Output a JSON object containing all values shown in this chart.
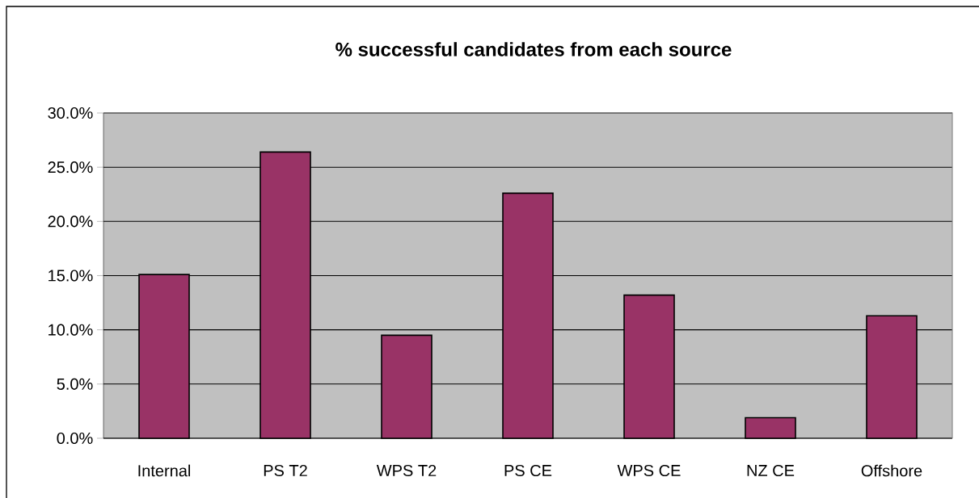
{
  "chart_data": {
    "type": "bar",
    "title": "% successful candidates from each source",
    "categories": [
      "Internal",
      "PS T2",
      "WPS T2",
      "PS CE",
      "WPS CE",
      "NZ CE",
      "Offshore"
    ],
    "values": [
      15.1,
      26.4,
      9.5,
      22.6,
      13.2,
      1.9,
      11.3
    ],
    "color": "#993366",
    "ylim": [
      0,
      30
    ],
    "yticks": [
      {
        "value": 0,
        "label": "0.0%"
      },
      {
        "value": 5,
        "label": "5.0%"
      },
      {
        "value": 10,
        "label": "10.0%"
      },
      {
        "value": 15,
        "label": "15.0%"
      },
      {
        "value": 20,
        "label": "20.0%"
      },
      {
        "value": 25,
        "label": "25.0%"
      },
      {
        "value": 30,
        "label": "30.0%"
      }
    ],
    "grid": "y"
  }
}
